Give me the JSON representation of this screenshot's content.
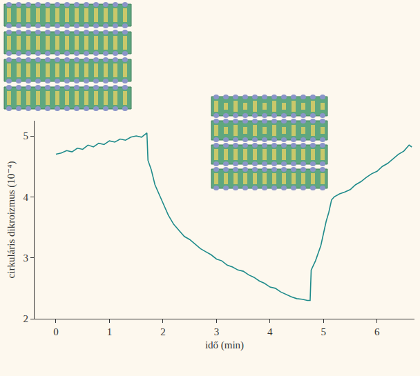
{
  "chart_data": {
    "type": "line",
    "x_label": "idő (min)",
    "y_label": "cirkuláris dikroizmus (10⁻⁴)",
    "color": "#1f8b8b",
    "x": [
      0,
      0.1,
      0.2,
      0.3,
      0.4,
      0.5,
      0.6,
      0.7,
      0.8,
      0.9,
      1.0,
      1.1,
      1.2,
      1.3,
      1.4,
      1.5,
      1.6,
      1.7,
      1.72,
      1.78,
      1.85,
      1.92,
      2.0,
      2.1,
      2.2,
      2.3,
      2.4,
      2.5,
      2.6,
      2.7,
      2.8,
      2.9,
      3.0,
      3.1,
      3.2,
      3.3,
      3.4,
      3.5,
      3.6,
      3.7,
      3.8,
      3.9,
      4.0,
      4.1,
      4.2,
      4.3,
      4.4,
      4.5,
      4.6,
      4.7,
      4.75,
      4.77,
      4.85,
      4.95,
      5.05,
      5.1,
      5.15,
      5.2,
      5.3,
      5.4,
      5.5,
      5.6,
      5.7,
      5.8,
      5.9,
      6.0,
      6.1,
      6.2,
      6.3,
      6.4,
      6.5,
      6.6,
      6.65
    ],
    "values": [
      4.7,
      4.72,
      4.76,
      4.74,
      4.8,
      4.78,
      4.85,
      4.82,
      4.88,
      4.86,
      4.92,
      4.9,
      4.95,
      4.93,
      4.98,
      5.0,
      4.98,
      5.05,
      4.6,
      4.45,
      4.2,
      4.05,
      3.9,
      3.7,
      3.55,
      3.45,
      3.35,
      3.3,
      3.22,
      3.15,
      3.1,
      3.05,
      2.98,
      2.95,
      2.88,
      2.85,
      2.8,
      2.78,
      2.72,
      2.68,
      2.62,
      2.58,
      2.52,
      2.5,
      2.44,
      2.4,
      2.36,
      2.33,
      2.32,
      2.3,
      2.3,
      2.8,
      2.95,
      3.2,
      3.6,
      3.75,
      3.95,
      4.0,
      4.05,
      4.08,
      4.12,
      4.2,
      4.25,
      4.32,
      4.38,
      4.42,
      4.5,
      4.55,
      4.62,
      4.7,
      4.75,
      4.85,
      4.82
    ],
    "xlim": [
      -0.4,
      6.7
    ],
    "xticks": [
      0,
      1,
      2,
      3,
      4,
      5,
      6
    ],
    "ylim": [
      2,
      5.25
    ],
    "yticks": [
      2,
      3,
      4,
      5
    ],
    "grid": false
  }
}
